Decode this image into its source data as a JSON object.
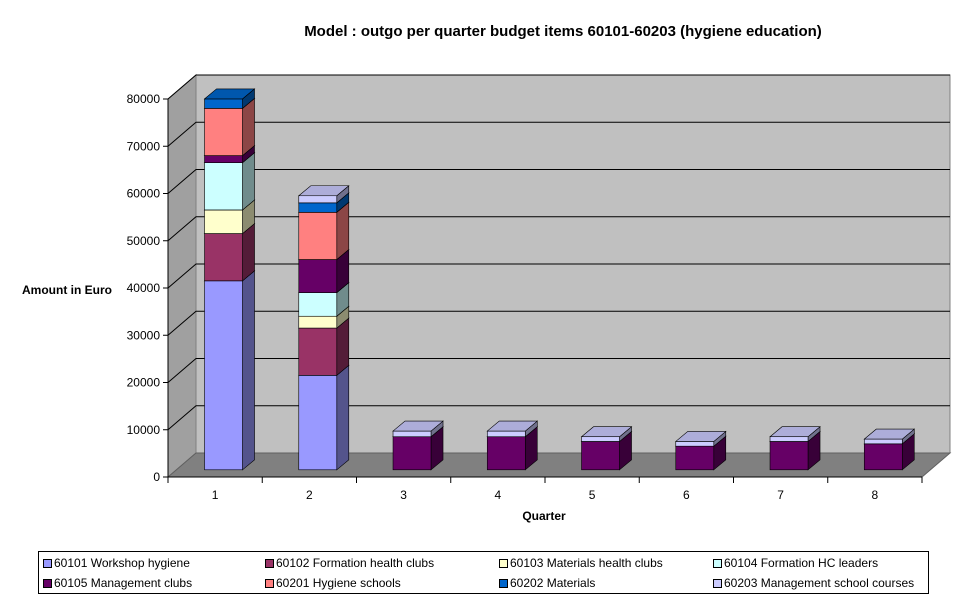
{
  "chart_data": {
    "type": "bar",
    "stacked": true,
    "three_d": true,
    "title": "Model : outgo per quarter budget items 60101-60203 (hygiene education)",
    "xlabel": "Quarter",
    "ylabel": "Amount in Euro",
    "ylim": [
      0,
      80000
    ],
    "yticks": [
      0,
      10000,
      20000,
      30000,
      40000,
      50000,
      60000,
      70000,
      80000
    ],
    "grid": true,
    "legend_position": "bottom",
    "categories": [
      "1",
      "2",
      "3",
      "4",
      "5",
      "6",
      "7",
      "8"
    ],
    "series": [
      {
        "name": "60101 Workshop hygiene",
        "color": "#9999FF",
        "values": [
          40000,
          20000,
          0,
          0,
          0,
          0,
          0,
          0
        ]
      },
      {
        "name": "60102 Formation health clubs",
        "color": "#993366",
        "values": [
          10000,
          10000,
          0,
          0,
          0,
          0,
          0,
          0
        ]
      },
      {
        "name": "60103 Materials health clubs",
        "color": "#FFFFCC",
        "values": [
          5000,
          2500,
          0,
          0,
          0,
          0,
          0,
          0
        ]
      },
      {
        "name": "60104 Formation HC leaders",
        "color": "#CCFFFF",
        "values": [
          10000,
          5000,
          0,
          0,
          0,
          0,
          0,
          0
        ]
      },
      {
        "name": "60105 Management clubs",
        "color": "#660066",
        "values": [
          1500,
          7000,
          7000,
          7000,
          6000,
          5000,
          6000,
          5500
        ]
      },
      {
        "name": "60201 Hygiene schools",
        "color": "#FF8080",
        "values": [
          10000,
          10000,
          0,
          0,
          0,
          0,
          0,
          0
        ]
      },
      {
        "name": "60202 Materials",
        "color": "#0066CC",
        "values": [
          2000,
          2000,
          0,
          0,
          0,
          0,
          0,
          0
        ]
      },
      {
        "name": "60203 Management school courses",
        "color": "#CCCCFF",
        "values": [
          0,
          1500,
          1200,
          1200,
          1000,
          1000,
          1000,
          1000
        ]
      }
    ]
  }
}
